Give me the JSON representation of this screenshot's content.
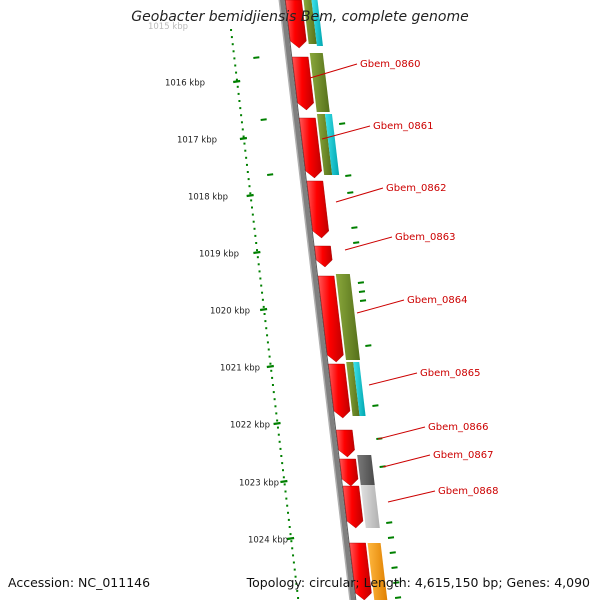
{
  "title": "Geobacter bemidjiensis Bem, complete genome",
  "footer": {
    "accession": "Accession: NC_011146",
    "summary": "Topology: circular; Length: 4,615,150 bp; Genes: 4,090"
  },
  "ruler": {
    "partial_label": "1015 kbp",
    "labels": [
      "1016 kbp",
      "1017 kbp",
      "1018 kbp",
      "1019 kbp",
      "1020 kbp",
      "1021 kbp",
      "1022 kbp",
      "1023 kbp",
      "1024 kbp"
    ]
  },
  "genes": [
    {
      "label": "Gbem_0860"
    },
    {
      "label": "Gbem_0861"
    },
    {
      "label": "Gbem_0862"
    },
    {
      "label": "Gbem_0863"
    },
    {
      "label": "Gbem_0864"
    },
    {
      "label": "Gbem_0865"
    },
    {
      "label": "Gbem_0866"
    },
    {
      "label": "Gbem_0867"
    },
    {
      "label": "Gbem_0868"
    }
  ],
  "colors": {
    "cds": "#ff0000",
    "feature_green": "#6b8e23",
    "feature_cyan": "#00c8d2",
    "feature_dark_gray": "#606060",
    "feature_light_gray": "#c8c8c8",
    "feature_orange": "#ff9900",
    "backbone": "#808080",
    "ruler_ticks": "#008000",
    "gene_label": "#cc0000"
  }
}
